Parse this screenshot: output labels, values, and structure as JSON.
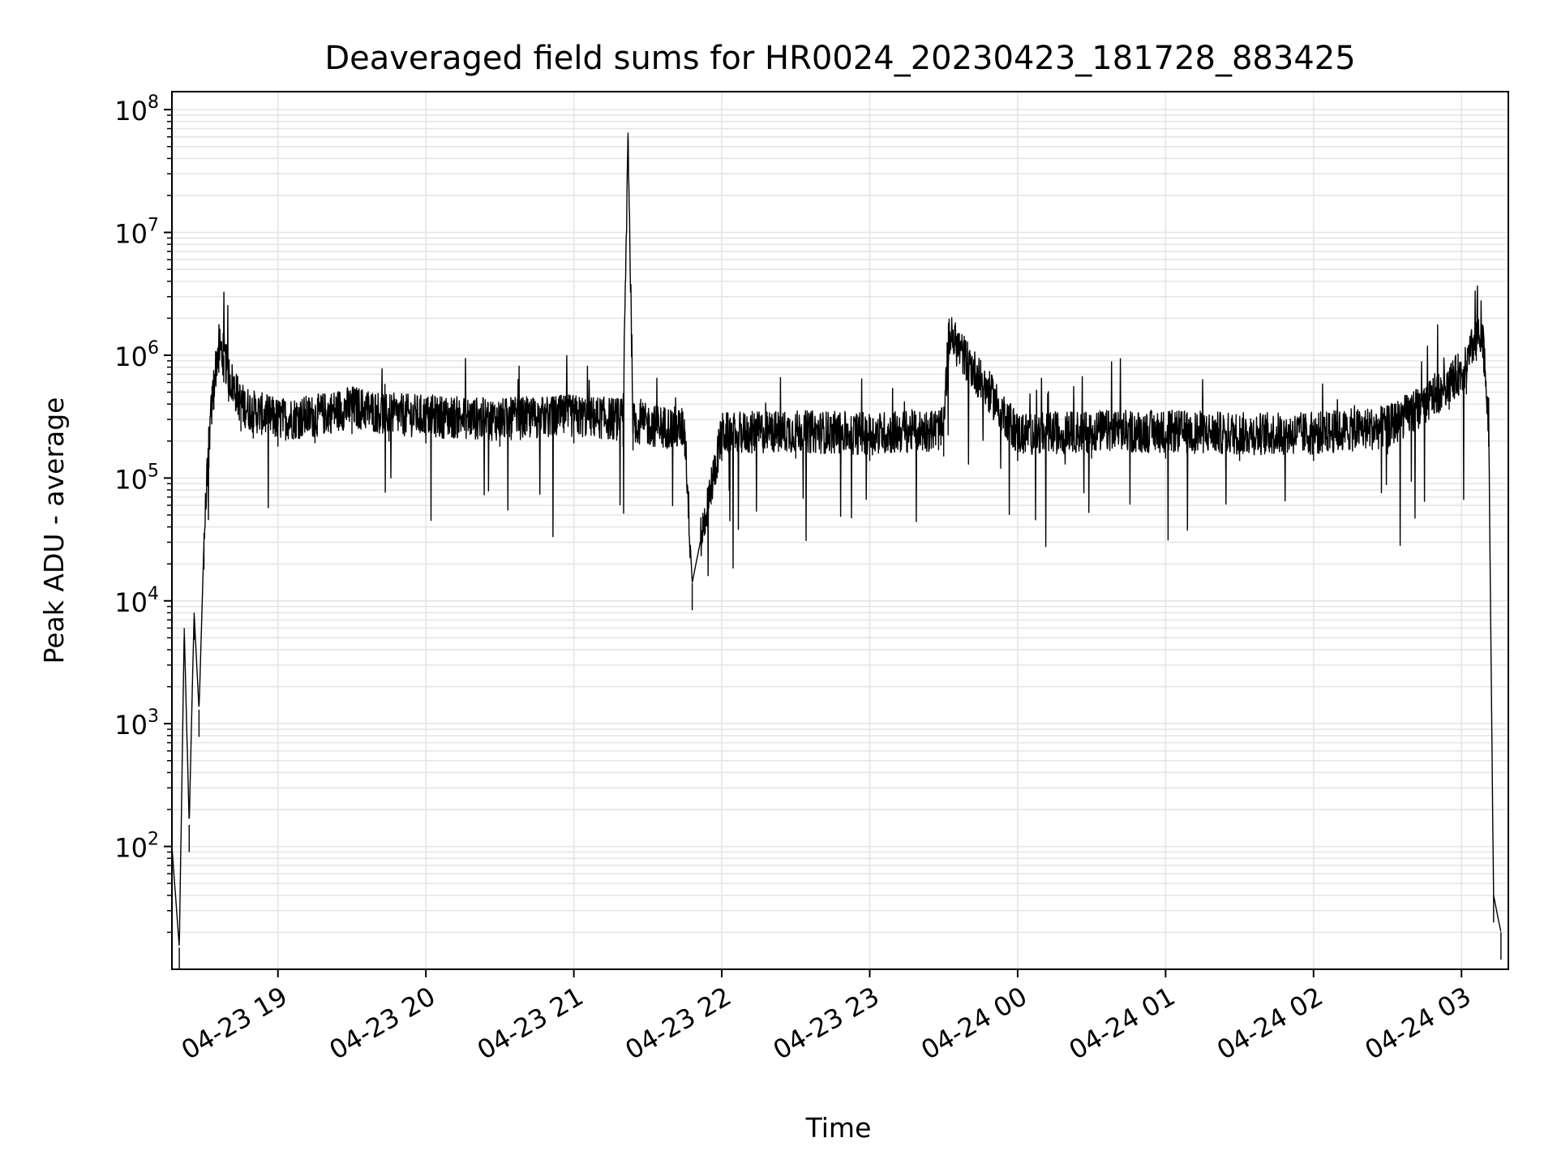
{
  "chart_data": {
    "type": "line",
    "title": "Deaveraged field sums for HR0024_20230423_181728_883425",
    "xlabel": "Time",
    "ylabel": "Peak ADU - average",
    "yscale": "log",
    "ylim": [
      10,
      140000000
    ],
    "xlim": [
      "2023-04-23 18:17",
      "2023-04-24 03:19"
    ],
    "grid": true,
    "line_color": "#000000",
    "x_ticks": [
      {
        "value": "2023-04-23 19:00",
        "label": "04-23 19"
      },
      {
        "value": "2023-04-23 20:00",
        "label": "04-23 20"
      },
      {
        "value": "2023-04-23 21:00",
        "label": "04-23 21"
      },
      {
        "value": "2023-04-23 22:00",
        "label": "04-23 22"
      },
      {
        "value": "2023-04-23 23:00",
        "label": "04-23 23"
      },
      {
        "value": "2023-04-24 00:00",
        "label": "04-24 00"
      },
      {
        "value": "2023-04-24 01:00",
        "label": "04-24 01"
      },
      {
        "value": "2023-04-24 02:00",
        "label": "04-24 02"
      },
      {
        "value": "2023-04-24 03:00",
        "label": "04-24 03"
      }
    ],
    "y_ticks": [
      {
        "value": 100,
        "base": "10",
        "exp": "2"
      },
      {
        "value": 1000,
        "base": "10",
        "exp": "3"
      },
      {
        "value": 10000,
        "base": "10",
        "exp": "4"
      },
      {
        "value": 100000,
        "base": "10",
        "exp": "5"
      },
      {
        "value": 1000000,
        "base": "10",
        "exp": "6"
      },
      {
        "value": 10000000,
        "base": "10",
        "exp": "7"
      },
      {
        "value": 100000000,
        "base": "10",
        "exp": "8"
      }
    ],
    "series": [
      {
        "x": [
          "2023-04-23 18:17",
          "2023-04-23 18:20",
          "2023-04-23 18:22",
          "2023-04-23 18:24",
          "2023-04-23 18:26",
          "2023-04-23 18:28",
          "2023-04-23 18:30",
          "2023-04-23 18:32",
          "2023-04-23 18:34",
          "2023-04-23 18:36",
          "2023-04-23 18:38",
          "2023-04-23 18:40",
          "2023-04-23 18:45",
          "2023-04-23 18:50",
          "2023-04-23 19:00",
          "2023-04-23 19:15",
          "2023-04-23 19:30",
          "2023-04-23 19:45",
          "2023-04-23 20:00",
          "2023-04-23 20:30",
          "2023-04-23 21:00",
          "2023-04-23 21:20",
          "2023-04-23 21:22",
          "2023-04-23 21:24",
          "2023-04-23 21:45",
          "2023-04-23 21:48",
          "2023-04-23 22:00",
          "2023-04-23 22:30",
          "2023-04-23 23:00",
          "2023-04-23 23:30",
          "2023-04-23 23:32",
          "2023-04-24 00:00",
          "2023-04-24 00:30",
          "2023-04-24 01:00",
          "2023-04-24 01:30",
          "2023-04-24 02:00",
          "2023-04-24 02:30",
          "2023-04-24 02:45",
          "2023-04-24 02:55",
          "2023-04-24 03:02",
          "2023-04-24 03:06",
          "2023-04-24 03:09",
          "2023-04-24 03:11",
          "2023-04-24 03:13",
          "2023-04-24 03:16"
        ],
        "y": [
          100,
          15,
          6000,
          150,
          8000,
          1300,
          30000,
          200000,
          600000,
          1200000,
          1000000,
          700000,
          400000,
          350000,
          300000,
          320000,
          380000,
          330000,
          320000,
          300000,
          320000,
          300000,
          65000000,
          280000,
          250000,
          14000,
          230000,
          240000,
          230000,
          250000,
          1500000,
          230000,
          240000,
          240000,
          230000,
          230000,
          260000,
          400000,
          600000,
          800000,
          1500000,
          1200000,
          300000,
          40,
          20
        ]
      }
    ]
  }
}
